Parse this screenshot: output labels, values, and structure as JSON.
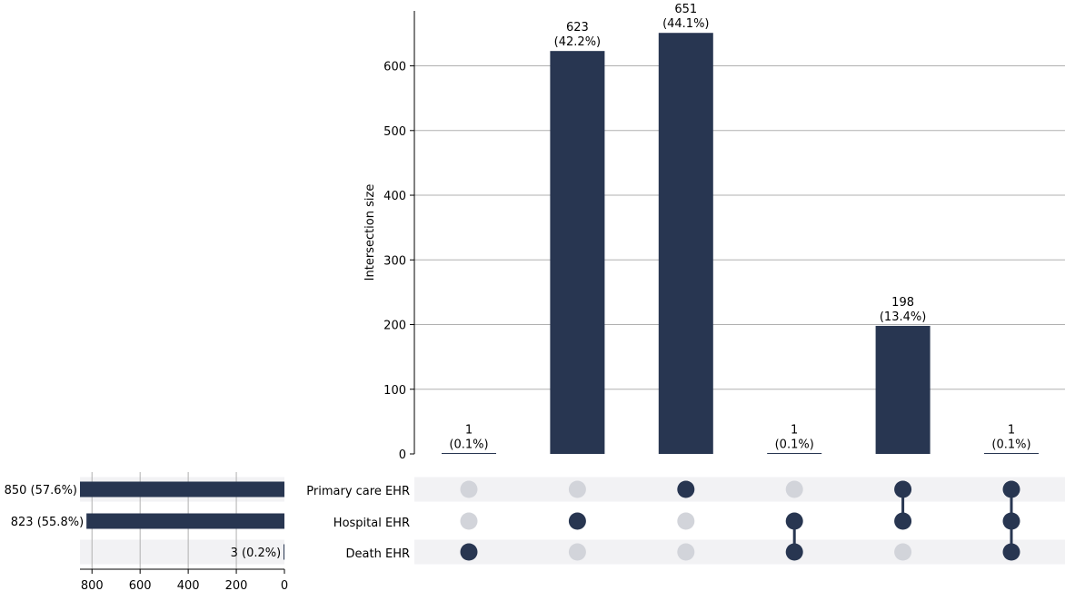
{
  "chart_data": {
    "type": "upset",
    "ylabel": "Intersection size",
    "ylim": [
      0,
      685
    ],
    "yticks": [
      0,
      100,
      200,
      300,
      400,
      500,
      600
    ],
    "set_size_ticks": [
      800,
      600,
      400,
      200,
      0
    ],
    "set_size_max": 850,
    "colors": {
      "bar": "#283651",
      "inactive_dot": "#d2d4da",
      "band": "#f2f2f4"
    },
    "sets": [
      {
        "name": "Primary care EHR",
        "size": 850,
        "label": "850 (57.6%)"
      },
      {
        "name": "Hospital EHR",
        "size": 823,
        "label": "823 (55.8%)"
      },
      {
        "name": "Death EHR",
        "size": 3,
        "label": "3 (0.2%)"
      }
    ],
    "intersections": [
      {
        "size": 1,
        "count_label": "1",
        "pct_label": "(0.1%)",
        "members": [
          false,
          false,
          true
        ]
      },
      {
        "size": 623,
        "count_label": "623",
        "pct_label": "(42.2%)",
        "members": [
          false,
          true,
          false
        ]
      },
      {
        "size": 651,
        "count_label": "651",
        "pct_label": "(44.1%)",
        "members": [
          true,
          false,
          false
        ]
      },
      {
        "size": 1,
        "count_label": "1",
        "pct_label": "(0.1%)",
        "members": [
          false,
          true,
          true
        ]
      },
      {
        "size": 198,
        "count_label": "198",
        "pct_label": "(13.4%)",
        "members": [
          true,
          true,
          false
        ]
      },
      {
        "size": 1,
        "count_label": "1",
        "pct_label": "(0.1%)",
        "members": [
          true,
          true,
          true
        ]
      }
    ]
  }
}
